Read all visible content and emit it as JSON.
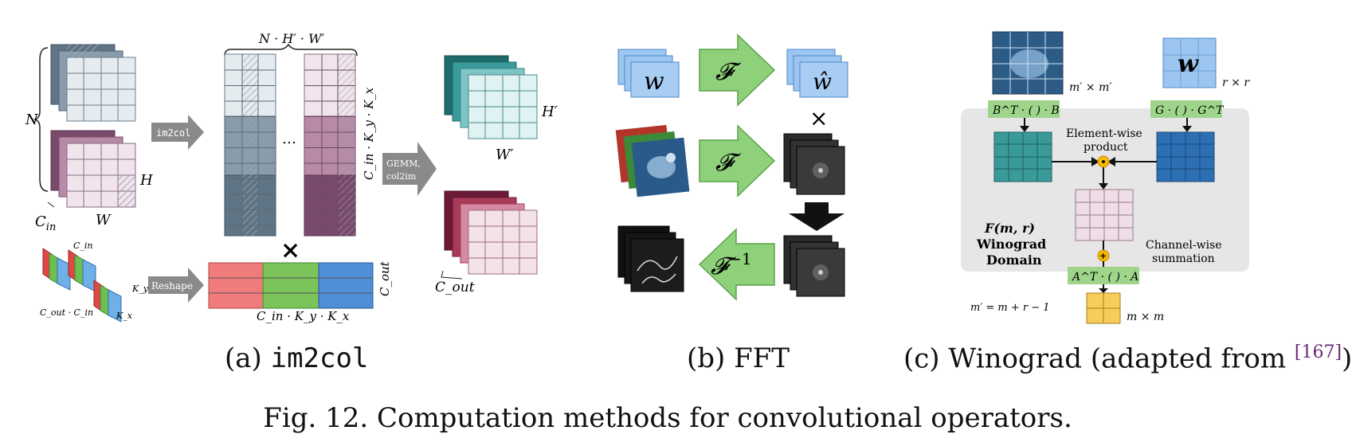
{
  "colors": {
    "im2col_blue": "#5f7485",
    "im2col_purple": "#7a4a6a",
    "teal": "#3a9a9a",
    "crimson": "#8a2a4a",
    "fft_green": "#7cc46a",
    "fft_blue": "#7eb3e6",
    "wino_teal": "#2f8f8f",
    "wino_blue": "#2c6fb3",
    "wino_green_label": "#9fd58a",
    "wino_yellow": "#f7cc5a",
    "wino_pink": "#efdde8",
    "panel_gray": "#e6e6e6",
    "arrow_gray": "#8a8a8a",
    "bar_red": "#f07b7b",
    "bar_green": "#7cc35a",
    "bar_blue": "#4e8fd6"
  },
  "im2col": {
    "n_label": "N",
    "h_label": "H",
    "w_label": "W",
    "cin_label": "C",
    "cin_sub": "in",
    "top_brace": "N · H′ · W′",
    "ellipsis": "…",
    "side_label": "C_in · K_y · K_x",
    "im2col_arrow": "im2col",
    "reshape_arrow": "Reshape",
    "times": "×",
    "bottom_brace": "C_in · K_y · K_x",
    "cout_side": "C_out",
    "kernel_cin": "C_in",
    "kernel_ky": "K_y",
    "kernel_kx": "K_x",
    "kernel_cout_cin": "C_out · C_in",
    "gemm_line1": "GEMM,",
    "gemm_line2": "col2im",
    "out_h": "H′",
    "out_w": "W′",
    "out_cout": "C_out"
  },
  "fft": {
    "w_label": "w",
    "w_hat_label": "ŵ",
    "f_label": "𝓕",
    "f_inv_label": "𝓕",
    "f_inv_sup": "−1",
    "times": "×"
  },
  "winograd": {
    "top_left_dim": "m′ × m′",
    "top_right_dim": "r × r",
    "w_label": "w",
    "bt_label": "B^T · ( ) · B",
    "g_label": "G · ( ) · G^T",
    "elementwise_line1": "Element-wise",
    "elementwise_line2": "product",
    "domain_line1": "F(m, r)",
    "domain_line2": "Winograd",
    "domain_line3": "Domain",
    "channel_line1": "Channel-wise",
    "channel_line2": "summation",
    "at_label": "A^T · ( ) · A",
    "m_eq": "m′ = m + r − 1",
    "out_dim": "m × m"
  },
  "captions": {
    "a_prefix": "(a) ",
    "a_code": "im2col",
    "b": "(b) FFT",
    "c_prefix": "(c) Winograd (adapted from ",
    "c_cite": "[167]",
    "c_suffix": ")",
    "main": "Fig. 12.  Computation methods for convolutional operators."
  }
}
